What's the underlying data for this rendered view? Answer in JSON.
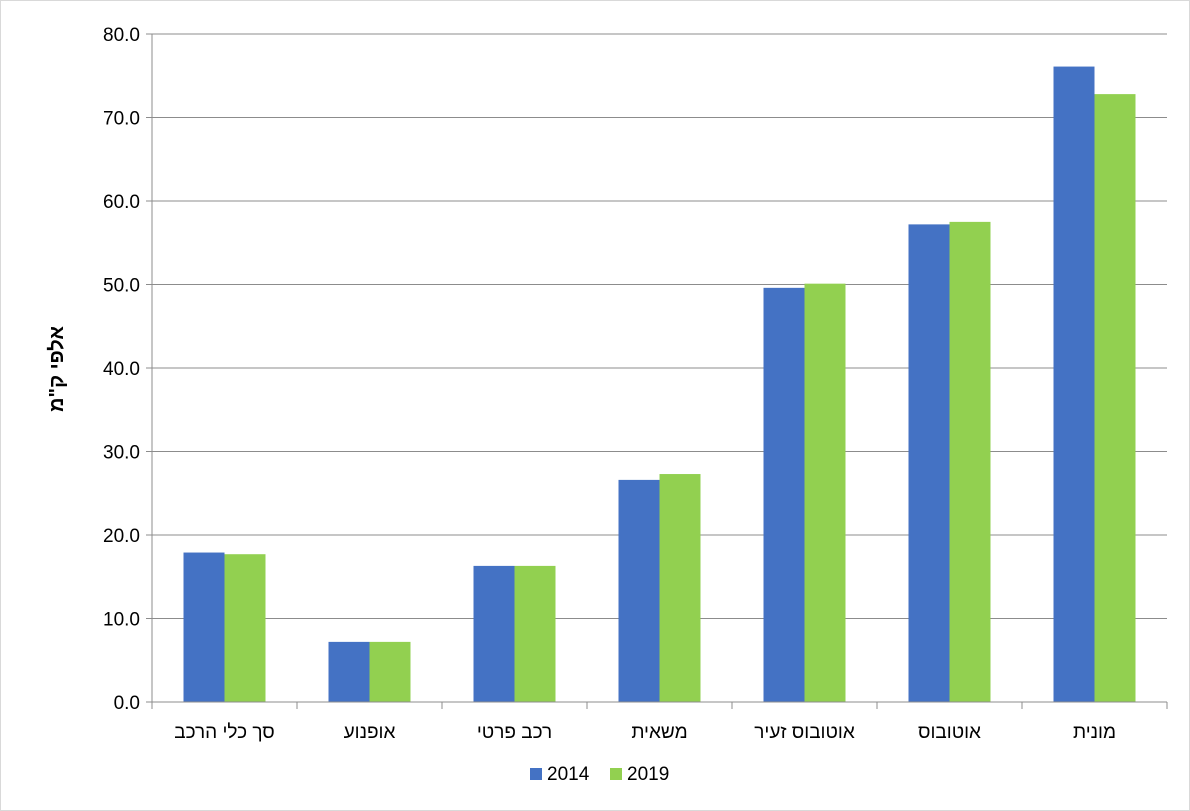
{
  "chart_data": {
    "type": "bar",
    "title": "",
    "xlabel": "",
    "ylabel": "אלפי ק\"מ",
    "ylim": [
      0,
      80
    ],
    "ytick_step": 10,
    "ytick_format": "one_decimal",
    "grid": true,
    "legend_position": "bottom",
    "categories": [
      "סך כלי הרכב",
      "אופנוע",
      "רכב פרטי",
      "משאית",
      "אוטובוס זעיר",
      "אוטובוס",
      "מונית"
    ],
    "series": [
      {
        "name": "2014",
        "color": "#4472c4",
        "values": [
          17.9,
          7.2,
          16.3,
          26.6,
          49.6,
          57.2,
          76.1
        ]
      },
      {
        "name": "2019",
        "color": "#92d050",
        "values": [
          17.7,
          7.2,
          16.3,
          27.3,
          50.1,
          57.5,
          72.8
        ]
      }
    ]
  }
}
